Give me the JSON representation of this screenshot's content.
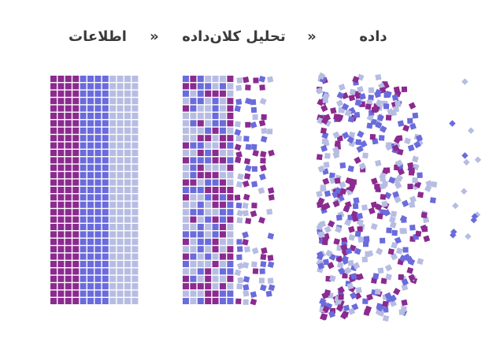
{
  "header": {
    "steps": [
      "داده",
      "تحلیل کلان‌داده",
      "اطلاعات"
    ],
    "separators": [
      "»",
      "»"
    ]
  }
}
